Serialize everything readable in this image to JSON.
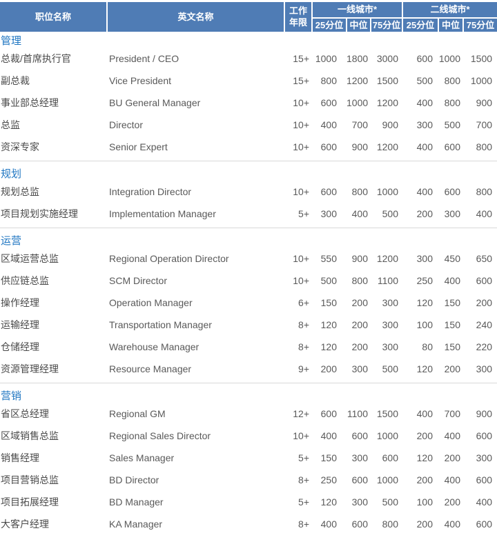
{
  "chart_data": {
    "type": "table",
    "header": {
      "position": "职位名称",
      "english_name": "英文名称",
      "work_years_line1": "工作",
      "work_years_line2": "年限",
      "tier1_group": "一线城市*",
      "tier2_group": "二线城市*",
      "p25": "25分位",
      "median": "中位",
      "p75": "75分位"
    },
    "sections": [
      {
        "title": "管理",
        "rows": [
          {
            "cn": "总裁/首席执行官",
            "en": "President / CEO",
            "years": "15+",
            "t1": [
              1000,
              1800,
              3000
            ],
            "t2": [
              600,
              1000,
              1500
            ]
          },
          {
            "cn": "副总裁",
            "en": "Vice President",
            "years": "15+",
            "t1": [
              800,
              1200,
              1500
            ],
            "t2": [
              500,
              800,
              1000
            ]
          },
          {
            "cn": "事业部总经理",
            "en": "BU General Manager",
            "years": "10+",
            "t1": [
              600,
              1000,
              1200
            ],
            "t2": [
              400,
              800,
              900
            ]
          },
          {
            "cn": "总监",
            "en": "Director",
            "years": "10+",
            "t1": [
              400,
              700,
              900
            ],
            "t2": [
              300,
              500,
              700
            ]
          },
          {
            "cn": "资深专家",
            "en": "Senior Expert",
            "years": "10+",
            "t1": [
              600,
              900,
              1200
            ],
            "t2": [
              400,
              600,
              800
            ]
          }
        ]
      },
      {
        "title": "规划",
        "rows": [
          {
            "cn": "规划总监",
            "en": "Integration Director",
            "years": "10+",
            "t1": [
              600,
              800,
              1000
            ],
            "t2": [
              400,
              600,
              800
            ]
          },
          {
            "cn": "项目规划实施经理",
            "en": "Implementation Manager",
            "years": "5+",
            "t1": [
              300,
              400,
              500
            ],
            "t2": [
              200,
              300,
              400
            ]
          }
        ]
      },
      {
        "title": "运营",
        "rows": [
          {
            "cn": "区域运营总监",
            "en": "Regional Operation Director",
            "years": "10+",
            "t1": [
              550,
              900,
              1200
            ],
            "t2": [
              300,
              450,
              650
            ]
          },
          {
            "cn": "供应链总监",
            "en": "SCM Director",
            "years": "10+",
            "t1": [
              500,
              800,
              1100
            ],
            "t2": [
              250,
              400,
              600
            ]
          },
          {
            "cn": "操作经理",
            "en": "Operation Manager",
            "years": "6+",
            "t1": [
              150,
              200,
              300
            ],
            "t2": [
              120,
              150,
              200
            ]
          },
          {
            "cn": "运输经理",
            "en": "Transportation Manager",
            "years": "8+",
            "t1": [
              120,
              200,
              300
            ],
            "t2": [
              100,
              150,
              240
            ]
          },
          {
            "cn": "仓储经理",
            "en": "Warehouse Manager",
            "years": "8+",
            "t1": [
              120,
              200,
              300
            ],
            "t2": [
              80,
              150,
              220
            ]
          },
          {
            "cn": "资源管理经理",
            "en": "Resource Manager",
            "years": "9+",
            "t1": [
              200,
              300,
              500
            ],
            "t2": [
              120,
              200,
              300
            ]
          }
        ]
      },
      {
        "title": "营销",
        "rows": [
          {
            "cn": "省区总经理",
            "en": "Regional GM",
            "years": "12+",
            "t1": [
              600,
              1100,
              1500
            ],
            "t2": [
              400,
              700,
              900
            ]
          },
          {
            "cn": "区域销售总监",
            "en": "Regional Sales Director",
            "years": "10+",
            "t1": [
              400,
              600,
              1000
            ],
            "t2": [
              200,
              400,
              600
            ]
          },
          {
            "cn": "销售经理",
            "en": "Sales Manager",
            "years": "5+",
            "t1": [
              150,
              300,
              600
            ],
            "t2": [
              120,
              200,
              300
            ]
          },
          {
            "cn": "项目营销总监",
            "en": "BD Director",
            "years": "8+",
            "t1": [
              250,
              600,
              1000
            ],
            "t2": [
              200,
              400,
              600
            ]
          },
          {
            "cn": "项目拓展经理",
            "en": "BD Manager",
            "years": "5+",
            "t1": [
              120,
              300,
              500
            ],
            "t2": [
              100,
              200,
              400
            ]
          },
          {
            "cn": "大客户经理",
            "en": "KA Manager",
            "years": "8+",
            "t1": [
              400,
              600,
              800
            ],
            "t2": [
              200,
              400,
              600
            ]
          }
        ]
      }
    ]
  },
  "colors": {
    "header_bg": "#4f7cb5",
    "section_title": "#1f76c2",
    "body_text": "#4a4a4a",
    "number_text": "#595959",
    "divider": "#d9d9d9"
  }
}
